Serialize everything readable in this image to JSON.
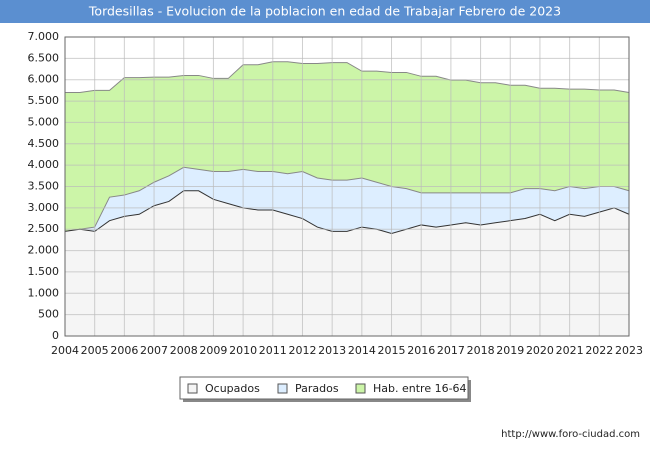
{
  "chart_data": {
    "type": "area",
    "title": "Tordesillas - Evolucion de la poblacion en edad de Trabajar Febrero de 2023",
    "source": "http://www.foro-ciudad.com",
    "x": [
      2004,
      2004.5,
      2005,
      2005.5,
      2006,
      2006.5,
      2007,
      2007.5,
      2008,
      2008.5,
      2009,
      2009.5,
      2010,
      2010.5,
      2011,
      2011.5,
      2012,
      2012.5,
      2013,
      2013.5,
      2014,
      2014.5,
      2015,
      2015.5,
      2016,
      2016.5,
      2017,
      2017.5,
      2018,
      2018.5,
      2019,
      2019.5,
      2020,
      2020.5,
      2021,
      2021.5,
      2022,
      2022.5,
      2023
    ],
    "series": [
      {
        "name": "Ocupados",
        "color": "#f5f5f5",
        "line": "#333333",
        "stack": true,
        "values": [
          2450,
          2500,
          2450,
          2700,
          2800,
          2850,
          3050,
          3150,
          3400,
          3400,
          3200,
          3100,
          3000,
          2950,
          2950,
          2850,
          2750,
          2550,
          2450,
          2450,
          2550,
          2500,
          2400,
          2500,
          2600,
          2550,
          2600,
          2650,
          2600,
          2650,
          2700,
          2750,
          2850,
          2700,
          2850,
          2800,
          2900,
          3000,
          2850
        ]
      },
      {
        "name": "Parados",
        "color": "#ddeeff",
        "line": "#888888",
        "stack": true,
        "values": [
          0,
          0,
          100,
          550,
          500,
          550,
          550,
          600,
          550,
          500,
          650,
          750,
          900,
          900,
          900,
          950,
          1100,
          1150,
          1200,
          1200,
          1150,
          1100,
          1100,
          950,
          750,
          800,
          750,
          700,
          750,
          700,
          650,
          700,
          600,
          700,
          650,
          650,
          600,
          500,
          550
        ]
      },
      {
        "name": "Hab. entre 16-64",
        "color": "#ccf5a8",
        "line": "#888888",
        "stack": false,
        "values": [
          5700,
          5700,
          5750,
          5750,
          6050,
          6050,
          6060,
          6060,
          6100,
          6100,
          6030,
          6030,
          6350,
          6350,
          6420,
          6420,
          6380,
          6380,
          6400,
          6400,
          6200,
          6200,
          6170,
          6170,
          6080,
          6080,
          5990,
          5990,
          5930,
          5930,
          5870,
          5870,
          5800,
          5800,
          5780,
          5780,
          5760,
          5760,
          5700
        ]
      }
    ],
    "xlim": [
      2004,
      2023
    ],
    "xticks": [
      2004,
      2005,
      2006,
      2007,
      2008,
      2009,
      2010,
      2011,
      2012,
      2013,
      2014,
      2015,
      2016,
      2017,
      2018,
      2019,
      2020,
      2021,
      2022,
      2023
    ],
    "ylim": [
      0,
      7000
    ],
    "yticks": [
      0,
      500,
      {
        "value": 1000,
        "label": "1.000"
      },
      {
        "value": 1500,
        "label": "1.500"
      },
      {
        "value": 2000,
        "label": "2.000"
      },
      {
        "value": 2500,
        "label": "2.500"
      },
      {
        "value": 3000,
        "label": "3.000"
      },
      {
        "value": 3500,
        "label": "3.500"
      },
      {
        "value": 4000,
        "label": "4.000"
      },
      {
        "value": 4500,
        "label": "4.500"
      },
      {
        "value": 5000,
        "label": "5.000"
      },
      {
        "value": 5500,
        "label": "5.500"
      },
      {
        "value": 6000,
        "label": "6.000"
      },
      {
        "value": 6500,
        "label": "6.500"
      },
      {
        "value": 7000,
        "label": "7.000"
      }
    ],
    "grid": true,
    "legend": "bottom"
  }
}
